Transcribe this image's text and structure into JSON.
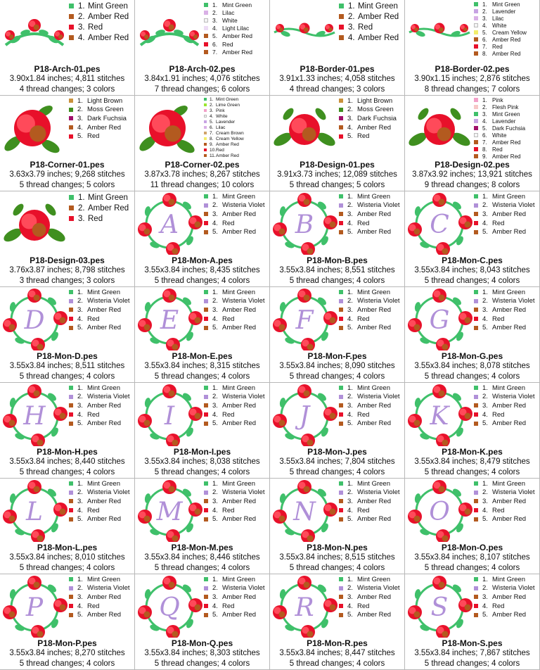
{
  "colors": {
    "Mint Green": "#3fc06a",
    "Amber Red": "#b35a1f",
    "Red": "#e8102a",
    "Lilac": "#d9b0e6",
    "White": "#f4f4f4",
    "Light Lilac": "#eddcf5",
    "Lavender": "#c7a3e3",
    "Cream Yellow": "#f3ee6c",
    "Light Brown": "#c9913b",
    "Moss Green": "#3f8f1f",
    "Dark Fuchsia": "#a0106a",
    "Lime Green": "#9ae62e",
    "Pink": "#f2a0c8",
    "Cream Brown": "#cfa36a",
    "Flesh Pink": "#f7c7c7",
    "Wisteria Violet": "#b090d8"
  },
  "designs": [
    {
      "file": "P18-Arch-01.pes",
      "size": "3.90x1.84 inches; 4,811 stitches",
      "changes": "4 thread changes; 3 colors",
      "art": "arch",
      "threads": [
        "Mint Green",
        "Amber Red",
        "Red",
        "Amber Red"
      ]
    },
    {
      "file": "P18-Arch-02.pes",
      "size": "3.84x1.91 inches; 4,076 stitches",
      "changes": "7 thread changes; 6 colors",
      "art": "arch",
      "threads": [
        "Mint Green",
        "Lilac",
        "White",
        "Light Lilac",
        "Amber Red",
        "Red",
        "Amber Red"
      ]
    },
    {
      "file": "P18-Border-01.pes",
      "size": "3.91x1.33 inches; 4,058 stitches",
      "changes": "4 thread changes; 3 colors",
      "art": "border",
      "threads": [
        "Mint Green",
        "Amber Red",
        "Red",
        "Amber Red"
      ]
    },
    {
      "file": "P18-Border-02.pes",
      "size": "3.90x1.15 inches; 2,876 stitches",
      "changes": "8 thread changes; 7 colors",
      "art": "border",
      "threads": [
        "Mint Green",
        "Lavender",
        "Lilac",
        "White",
        "Cream Yellow",
        "Amber Red",
        "Red",
        "Amber Red"
      ]
    },
    {
      "file": "P18-Corner-01.pes",
      "size": "3.63x3.79 inches; 9,268 stitches",
      "changes": "5 thread changes; 5 colors",
      "art": "corner",
      "threads": [
        "Light Brown",
        "Moss Green",
        "Dark Fuchsia",
        "Amber Red",
        "Red"
      ]
    },
    {
      "file": "P18-Corner-02.pes",
      "size": "3.87x3.78 inches; 8,267 stitches",
      "changes": "11 thread changes; 10 colors",
      "art": "corner",
      "threads": [
        "Mint Green",
        "Lime Green",
        "Pink",
        "White",
        "Lavender",
        "Lilac",
        "Cream Brown",
        "Cream Yellow",
        "Amber Red",
        "Red",
        "Amber Red"
      ]
    },
    {
      "file": "P18-Design-01.pes",
      "size": "3.91x3.73 inches; 12,089 stitches",
      "changes": "5 thread changes; 5 colors",
      "art": "design",
      "threads": [
        "Light Brown",
        "Moss Green",
        "Dark Fuchsia",
        "Amber Red",
        "Red"
      ]
    },
    {
      "file": "P18-Design-02.pes",
      "size": "3.87x3.92 inches; 13,921 stitches",
      "changes": "9 thread changes; 8 colors",
      "art": "design",
      "threads": [
        "Pink",
        "Flesh Pink",
        "Mint Green",
        "Lavender",
        "Dark Fuchsia",
        "White",
        "Amber Red",
        "Red",
        "Amber Red"
      ]
    },
    {
      "file": "P18-Design-03.pes",
      "size": "3.76x3.87 inches; 8,798 stitches",
      "changes": "3 thread changes; 3 colors",
      "art": "design",
      "threads": [
        "Mint Green",
        "Amber Red",
        "Red"
      ]
    },
    {
      "file": "P18-Mon-A.pes",
      "size": "3.55x3.84 inches; 8,435 stitches",
      "changes": "5 thread changes; 4 colors",
      "art": "mon",
      "letter": "A",
      "threads": [
        "Mint Green",
        "Wisteria Violet",
        "Amber Red",
        "Red",
        "Amber Red"
      ]
    },
    {
      "file": "P18-Mon-B.pes",
      "size": "3.55x3.84 inches; 8,551 stitches",
      "changes": "5 thread changes; 4 colors",
      "art": "mon",
      "letter": "B",
      "threads": [
        "Mint Green",
        "Wisteria Violet",
        "Amber Red",
        "Red",
        "Amber Red"
      ]
    },
    {
      "file": "P18-Mon-C.pes",
      "size": "3.55x3.84 inches; 8,043 stitches",
      "changes": "5 thread changes; 4 colors",
      "art": "mon",
      "letter": "C",
      "threads": [
        "Mint Green",
        "Wisteria Violet",
        "Amber Red",
        "Red",
        "Amber Red"
      ]
    },
    {
      "file": "P18-Mon-D.pes",
      "size": "3.55x3.84 inches; 8,511 stitches",
      "changes": "5 thread changes; 4 colors",
      "art": "mon",
      "letter": "D",
      "threads": [
        "Mint Green",
        "Wisteria Violet",
        "Amber Red",
        "Red",
        "Amber Red"
      ]
    },
    {
      "file": "P18-Mon-E.pes",
      "size": "3.55x3.84 inches; 8,315 stitches",
      "changes": "5 thread changes; 4 colors",
      "art": "mon",
      "letter": "E",
      "threads": [
        "Mint Green",
        "Wisteria Violet",
        "Amber Red",
        "Red",
        "Amber Red"
      ]
    },
    {
      "file": "P18-Mon-F.pes",
      "size": "3.55x3.84 inches; 8,090 stitches",
      "changes": "5 thread changes; 4 colors",
      "art": "mon",
      "letter": "F",
      "threads": [
        "Mint Green",
        "Wisteria Violet",
        "Amber Red",
        "Red",
        "Amber Red"
      ]
    },
    {
      "file": "P18-Mon-G.pes",
      "size": "3.55x3.84 inches; 8,078 stitches",
      "changes": "5 thread changes; 4 colors",
      "art": "mon",
      "letter": "G",
      "threads": [
        "Mint Green",
        "Wisteria Violet",
        "Amber Red",
        "Red",
        "Amber Red"
      ]
    },
    {
      "file": "P18-Mon-H.pes",
      "size": "3.55x3.84 inches; 8,440 stitches",
      "changes": "5 thread changes; 4 colors",
      "art": "mon",
      "letter": "H",
      "threads": [
        "Mint Green",
        "Wisteria Violet",
        "Amber Red",
        "Red",
        "Amber Red"
      ]
    },
    {
      "file": "P18-Mon-I.pes",
      "size": "3.55x3.84 inches; 8,038 stitches",
      "changes": "5 thread changes; 4 colors",
      "art": "mon",
      "letter": "I",
      "threads": [
        "Mint Green",
        "Wisteria Violet",
        "Amber Red",
        "Red",
        "Amber Red"
      ]
    },
    {
      "file": "P18-Mon-J.pes",
      "size": "3.55x3.84 inches; 7,804 stitches",
      "changes": "5 thread changes; 4 colors",
      "art": "mon",
      "letter": "J",
      "threads": [
        "Mint Green",
        "Wisteria Violet",
        "Amber Red",
        "Red",
        "Amber Red"
      ]
    },
    {
      "file": "P18-Mon-K.pes",
      "size": "3.55x3.84 inches; 8,479 stitches",
      "changes": "5 thread changes; 4 colors",
      "art": "mon",
      "letter": "K",
      "threads": [
        "Mint Green",
        "Wisteria Violet",
        "Amber Red",
        "Red",
        "Amber Red"
      ]
    },
    {
      "file": "P18-Mon-L.pes",
      "size": "3.55x3.84 inches; 8,010 stitches",
      "changes": "5 thread changes; 4 colors",
      "art": "mon",
      "letter": "L",
      "threads": [
        "Mint Green",
        "Wisteria Violet",
        "Amber Red",
        "Red",
        "Amber Red"
      ]
    },
    {
      "file": "P18-Mon-M.pes",
      "size": "3.55x3.84 inches; 8,446 stitches",
      "changes": "5 thread changes; 4 colors",
      "art": "mon",
      "letter": "M",
      "threads": [
        "Mint Green",
        "Wisteria Violet",
        "Amber Red",
        "Red",
        "Amber Red"
      ]
    },
    {
      "file": "P18-Mon-N.pes",
      "size": "3.55x3.84 inches; 8,515 stitches",
      "changes": "5 thread changes; 4 colors",
      "art": "mon",
      "letter": "N",
      "threads": [
        "Mint Green",
        "Wisteria Violet",
        "Amber Red",
        "Red",
        "Amber Red"
      ]
    },
    {
      "file": "P18-Mon-O.pes",
      "size": "3.55x3.84 inches; 8,107 stitches",
      "changes": "5 thread changes; 4 colors",
      "art": "mon",
      "letter": "O",
      "threads": [
        "Mint Green",
        "Wisteria Violet",
        "Amber Red",
        "Red",
        "Amber Red"
      ]
    },
    {
      "file": "P18-Mon-P.pes",
      "size": "3.55x3.84 inches; 8,270 stitches",
      "changes": "5 thread changes; 4 colors",
      "art": "mon",
      "letter": "P",
      "threads": [
        "Mint Green",
        "Wisteria Violet",
        "Amber Red",
        "Red",
        "Amber Red"
      ]
    },
    {
      "file": "P18-Mon-Q.pes",
      "size": "3.55x3.84 inches; 8,303 stitches",
      "changes": "5 thread changes; 4 colors",
      "art": "mon",
      "letter": "Q",
      "threads": [
        "Mint Green",
        "Wisteria Violet",
        "Amber Red",
        "Red",
        "Amber Red"
      ]
    },
    {
      "file": "P18-Mon-R.pes",
      "size": "3.55x3.84 inches; 8,447 stitches",
      "changes": "5 thread changes; 4 colors",
      "art": "mon",
      "letter": "R",
      "threads": [
        "Mint Green",
        "Wisteria Violet",
        "Amber Red",
        "Red",
        "Amber Red"
      ]
    },
    {
      "file": "P18-Mon-S.pes",
      "size": "3.55x3.84 inches; 7,867 stitches",
      "changes": "5 thread changes; 4 colors",
      "art": "mon",
      "letter": "S",
      "threads": [
        "Mint Green",
        "Wisteria Violet",
        "Amber Red",
        "Red",
        "Amber Red"
      ]
    }
  ]
}
